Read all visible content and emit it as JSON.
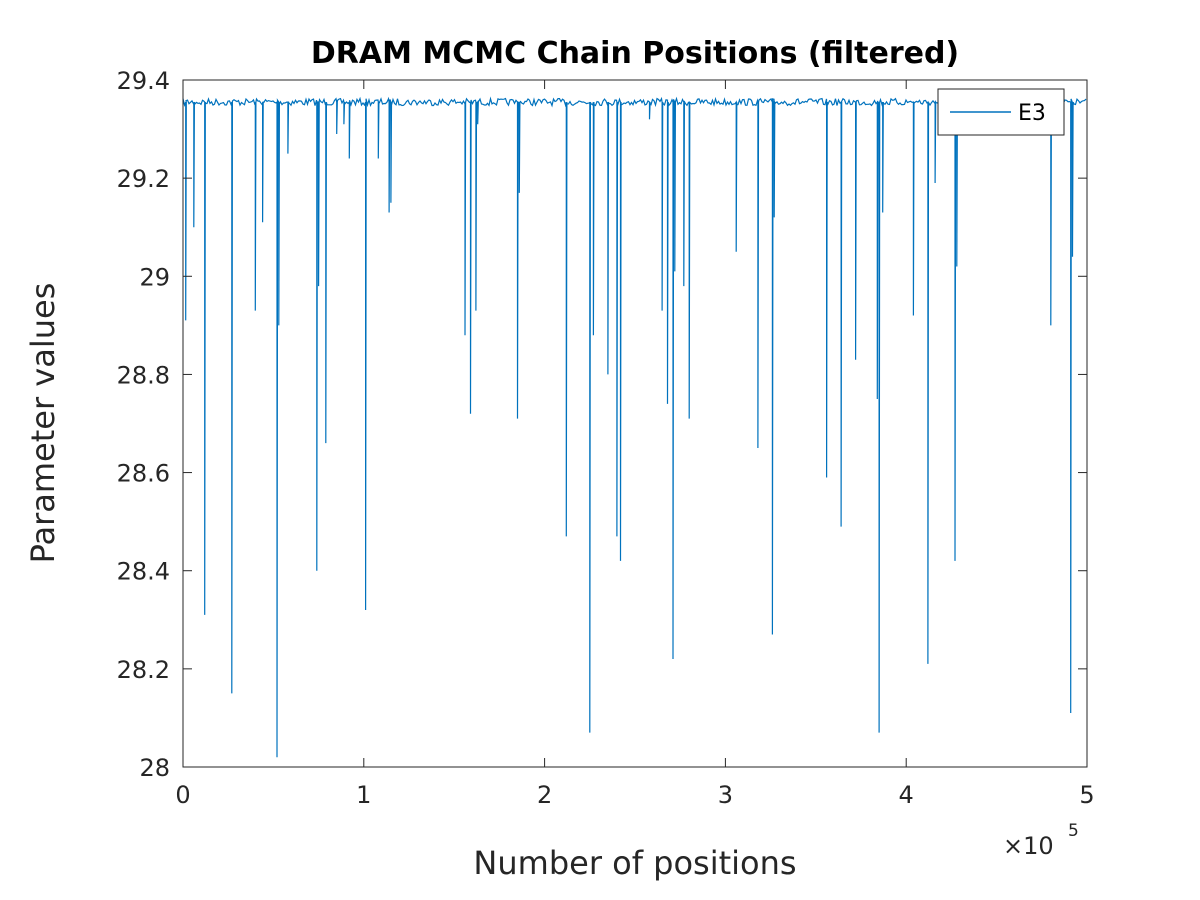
{
  "chart_data": {
    "type": "line",
    "title": "DRAM MCMC Chain Positions (filtered)",
    "xlabel": "Number of positions",
    "ylabel": "Parameter values",
    "x_multiplier": "×10",
    "x_multiplier_exponent": "5",
    "xlim": [
      0,
      5
    ],
    "ylim": [
      28,
      29.4
    ],
    "xticks": [
      0,
      1,
      2,
      3,
      4,
      5
    ],
    "xtick_labels": [
      "0",
      "1",
      "2",
      "3",
      "4",
      "5"
    ],
    "yticks": [
      28,
      28.2,
      28.4,
      28.6,
      28.8,
      29,
      29.2,
      29.4
    ],
    "ytick_labels": [
      "28",
      "28.2",
      "28.4",
      "28.6",
      "28.8",
      "29",
      "29.2",
      "29.4"
    ],
    "legend_position": "top-right",
    "grid": false,
    "series": [
      {
        "name": "E3",
        "color": "#0072BD",
        "baseline": 29.355,
        "dips": [
          [
            0.015,
            28.91
          ],
          [
            0.06,
            29.1
          ],
          [
            0.12,
            28.31
          ],
          [
            0.27,
            28.15
          ],
          [
            0.4,
            28.93
          ],
          [
            0.44,
            29.11
          ],
          [
            0.52,
            28.02
          ],
          [
            0.53,
            28.9
          ],
          [
            0.58,
            29.25
          ],
          [
            0.74,
            28.4
          ],
          [
            0.75,
            28.98
          ],
          [
            0.79,
            28.66
          ],
          [
            0.85,
            29.29
          ],
          [
            0.89,
            29.31
          ],
          [
            0.92,
            29.24
          ],
          [
            1.01,
            28.32
          ],
          [
            1.08,
            29.24
          ],
          [
            1.14,
            29.13
          ],
          [
            1.15,
            29.15
          ],
          [
            1.56,
            28.88
          ],
          [
            1.59,
            28.72
          ],
          [
            1.62,
            28.93
          ],
          [
            1.63,
            29.31
          ],
          [
            1.85,
            28.71
          ],
          [
            1.86,
            29.17
          ],
          [
            2.12,
            28.47
          ],
          [
            2.25,
            28.07
          ],
          [
            2.27,
            28.88
          ],
          [
            2.35,
            28.8
          ],
          [
            2.4,
            28.47
          ],
          [
            2.42,
            28.42
          ],
          [
            2.58,
            29.32
          ],
          [
            2.65,
            28.93
          ],
          [
            2.68,
            28.74
          ],
          [
            2.71,
            28.22
          ],
          [
            2.72,
            29.01
          ],
          [
            2.77,
            28.98
          ],
          [
            2.8,
            28.71
          ],
          [
            3.06,
            29.05
          ],
          [
            3.18,
            28.65
          ],
          [
            3.26,
            28.27
          ],
          [
            3.27,
            29.12
          ],
          [
            3.56,
            28.59
          ],
          [
            3.64,
            28.49
          ],
          [
            3.72,
            28.83
          ],
          [
            3.85,
            28.07
          ],
          [
            3.84,
            28.75
          ],
          [
            3.87,
            29.13
          ],
          [
            4.04,
            28.92
          ],
          [
            4.12,
            28.21
          ],
          [
            4.16,
            29.19
          ],
          [
            4.27,
            28.42
          ],
          [
            4.28,
            29.02
          ],
          [
            4.8,
            28.9
          ],
          [
            4.91,
            28.11
          ],
          [
            4.92,
            29.04
          ]
        ]
      }
    ]
  }
}
